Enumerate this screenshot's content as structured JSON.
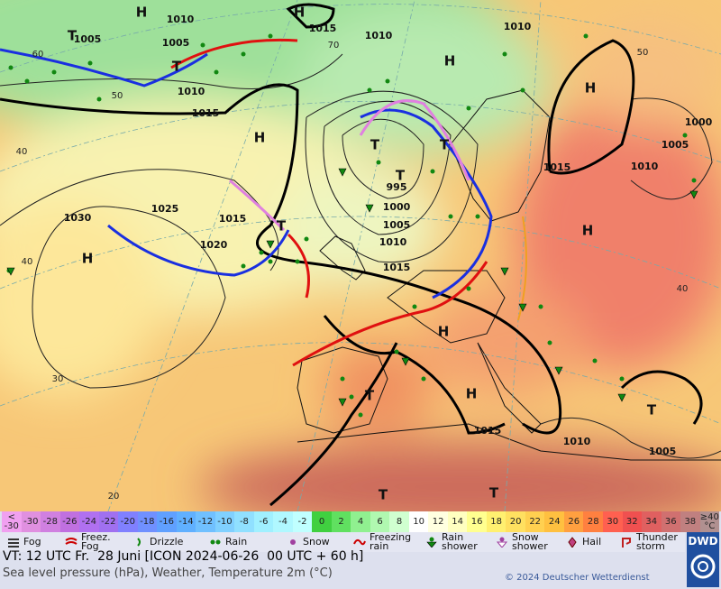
{
  "map": {
    "pressure_labels": [
      "1010",
      "1005",
      "1015",
      "1010",
      "1005",
      "1010",
      "1015",
      "1000",
      "1005",
      "1015",
      "1010",
      "995",
      "1000",
      "1005",
      "1010",
      "1025",
      "1015",
      "1030",
      "1020",
      "1015",
      "1010",
      "1015",
      "1010",
      "1005"
    ],
    "centers": [
      "H",
      "H",
      "T",
      "T",
      "H",
      "H",
      "H",
      "T",
      "T",
      "T",
      "T",
      "H",
      "H",
      "H",
      "H",
      "T",
      "T",
      "T",
      "T"
    ],
    "latitude_labels": [
      "60",
      "50",
      "40",
      "40",
      "30",
      "20",
      "70",
      "50",
      "40"
    ]
  },
  "temperature_scale": {
    "labels": [
      "< -30",
      "-30",
      "-28",
      "-26",
      "-24",
      "-22",
      "-20",
      "-18",
      "-16",
      "-14",
      "-12",
      "-10",
      "-8",
      "-6",
      "-4",
      "-2",
      "0",
      "2",
      "4",
      "6",
      "8",
      "10",
      "12",
      "14",
      "16",
      "18",
      "20",
      "22",
      "24",
      "26",
      "28",
      "30",
      "32",
      "34",
      "36",
      "38",
      "≥40 °C"
    ],
    "colors": [
      "#f0a0f0",
      "#e090e0",
      "#d080e0",
      "#c070e0",
      "#b070f0",
      "#a070f0",
      "#8080ff",
      "#7090ff",
      "#60a0ff",
      "#60b0ff",
      "#70c0ff",
      "#80d0ff",
      "#90e0ff",
      "#a0f0ff",
      "#b0f8ff",
      "#c0ffff",
      "#40d040",
      "#60e060",
      "#90f090",
      "#b0f8b0",
      "#d0ffd0",
      "#ffffff",
      "#ffffe0",
      "#ffffc0",
      "#ffff90",
      "#fff070",
      "#ffe060",
      "#ffd050",
      "#ffc040",
      "#ffa040",
      "#ff8040",
      "#ff6050",
      "#f05050",
      "#e06060",
      "#d07070",
      "#c08080",
      "#b09090"
    ]
  },
  "legend": [
    "Fog",
    "Freez. Fog",
    "Drizzle",
    "Rain",
    "Snow",
    "Freezing rain",
    "Rain shower",
    "Snow shower",
    "Hail",
    "Thunder storm"
  ],
  "footer": {
    "valid_time": "VT: 12 UTC Fr.  28 Juni [ICON 2024-06-26  00 UTC + 60 h]",
    "description": "Sea level pressure (hPa), Weather, Temperature 2m (°C)",
    "copyright": "© 2024 Deutscher Wetterdienst",
    "logo": "DWD"
  }
}
